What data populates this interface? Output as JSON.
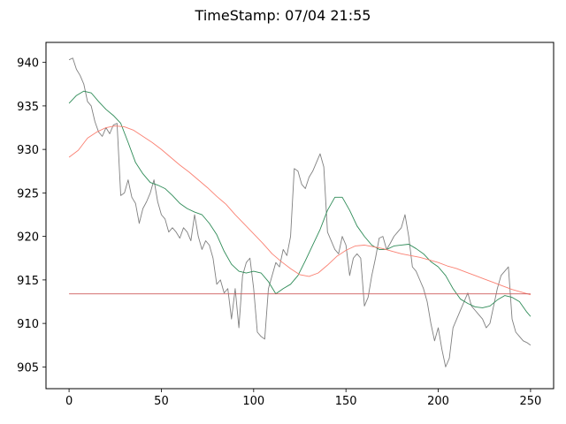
{
  "chart_data": {
    "type": "line",
    "title": "TimeStamp: 07/04 21:55",
    "xlabel": "",
    "ylabel": "",
    "xlim": [
      -12.5,
      262.5
    ],
    "ylim": [
      902.5,
      942.3
    ],
    "xticks": [
      0,
      50,
      100,
      150,
      200,
      250
    ],
    "yticks": [
      905,
      910,
      915,
      920,
      925,
      930,
      935,
      940
    ],
    "grid": false,
    "legend": "none",
    "series": [
      {
        "color": "#808080",
        "x": [
          0,
          2,
          4,
          6,
          8,
          10,
          12,
          14,
          16,
          18,
          20,
          22,
          24,
          26,
          28,
          30,
          32,
          34,
          36,
          38,
          40,
          42,
          44,
          46,
          48,
          50,
          52,
          54,
          56,
          58,
          60,
          62,
          64,
          66,
          68,
          70,
          72,
          74,
          76,
          78,
          80,
          82,
          84,
          86,
          88,
          90,
          92,
          94,
          96,
          98,
          100,
          102,
          104,
          106,
          108,
          110,
          112,
          114,
          116,
          118,
          120,
          122,
          124,
          126,
          128,
          130,
          132,
          134,
          136,
          138,
          140,
          142,
          144,
          146,
          148,
          150,
          152,
          154,
          156,
          158,
          160,
          162,
          164,
          166,
          168,
          170,
          172,
          174,
          176,
          178,
          180,
          182,
          184,
          186,
          188,
          190,
          192,
          194,
          196,
          198,
          200,
          202,
          204,
          206,
          208,
          210,
          212,
          214,
          216,
          218,
          220,
          222,
          224,
          226,
          228,
          230,
          232,
          234,
          236,
          238,
          240,
          242,
          244,
          246,
          248,
          250
        ],
        "values": [
          940.3,
          940.5,
          939.2,
          938.5,
          937.5,
          935.5,
          935.0,
          933.2,
          932.0,
          931.5,
          932.5,
          931.8,
          932.8,
          933.0,
          924.7,
          925.0,
          926.5,
          924.5,
          923.8,
          921.5,
          923.2,
          924.0,
          925.0,
          926.5,
          924.0,
          922.5,
          922.0,
          920.5,
          921.0,
          920.5,
          919.8,
          921.0,
          920.5,
          919.5,
          922.5,
          920.0,
          918.5,
          919.5,
          919.0,
          917.5,
          914.5,
          915.0,
          913.5,
          914.0,
          910.5,
          914.0,
          909.5,
          915.5,
          917.0,
          917.5,
          914.0,
          909.0,
          908.5,
          908.2,
          914.0,
          915.5,
          917.0,
          916.5,
          918.5,
          917.8,
          920.0,
          927.8,
          927.5,
          926.0,
          925.5,
          926.8,
          927.5,
          928.5,
          929.5,
          928.0,
          920.5,
          919.5,
          918.5,
          918.0,
          920.0,
          919.0,
          915.5,
          917.5,
          918.0,
          917.5,
          912.0,
          913.0,
          915.5,
          917.5,
          919.8,
          920.0,
          918.5,
          919.2,
          920.0,
          920.5,
          921.0,
          922.5,
          920.0,
          916.5,
          916.0,
          915.0,
          914.0,
          912.5,
          910.0,
          908.0,
          909.5,
          907.0,
          905.0,
          906.0,
          909.5,
          910.5,
          911.5,
          912.5,
          913.5,
          912.0,
          911.5,
          911.0,
          910.5,
          909.5,
          910.0,
          912.0,
          914.0,
          915.5,
          916.0,
          916.5,
          910.5,
          909.0,
          908.5,
          908.0,
          907.8,
          907.5
        ]
      },
      {
        "color": "#2e8b57",
        "x": [
          0,
          4,
          8,
          12,
          16,
          20,
          24,
          28,
          32,
          36,
          40,
          44,
          48,
          52,
          56,
          60,
          64,
          68,
          72,
          76,
          80,
          84,
          88,
          92,
          96,
          100,
          104,
          108,
          112,
          116,
          120,
          124,
          128,
          132,
          136,
          140,
          144,
          148,
          152,
          156,
          160,
          164,
          168,
          172,
          176,
          180,
          184,
          188,
          192,
          196,
          200,
          204,
          208,
          212,
          216,
          220,
          224,
          228,
          232,
          236,
          240,
          244,
          248,
          250
        ],
        "values": [
          935.3,
          936.2,
          936.7,
          936.5,
          935.5,
          934.6,
          933.9,
          933.0,
          930.8,
          928.5,
          927.2,
          926.2,
          925.9,
          925.5,
          924.7,
          923.8,
          923.2,
          922.8,
          922.5,
          921.5,
          920.2,
          918.3,
          916.8,
          916.0,
          915.8,
          916.0,
          915.8,
          914.8,
          913.4,
          914.0,
          914.5,
          915.5,
          917.2,
          919.0,
          920.8,
          923.0,
          924.5,
          924.5,
          923.0,
          921.2,
          920.0,
          919.0,
          918.5,
          918.5,
          918.9,
          919.0,
          919.1,
          918.6,
          918.0,
          917.1,
          916.5,
          915.5,
          914.0,
          912.8,
          912.3,
          911.9,
          911.8,
          912.0,
          912.7,
          913.2,
          913.0,
          912.5,
          911.3,
          910.8
        ]
      },
      {
        "color": "#fa8072",
        "x": [
          0,
          5,
          10,
          15,
          20,
          25,
          30,
          35,
          40,
          45,
          50,
          55,
          60,
          65,
          70,
          75,
          80,
          85,
          90,
          95,
          100,
          105,
          110,
          115,
          120,
          125,
          130,
          135,
          140,
          145,
          150,
          155,
          160,
          165,
          170,
          175,
          180,
          185,
          190,
          195,
          200,
          205,
          210,
          215,
          220,
          225,
          230,
          235,
          240,
          245,
          250
        ],
        "values": [
          929.1,
          929.9,
          931.3,
          932.0,
          932.5,
          932.7,
          932.6,
          932.2,
          931.5,
          930.8,
          930.0,
          929.1,
          928.2,
          927.4,
          926.5,
          925.6,
          924.6,
          923.7,
          922.5,
          921.4,
          920.3,
          919.2,
          918.0,
          917.1,
          916.3,
          915.6,
          915.4,
          915.8,
          916.7,
          917.7,
          918.4,
          918.9,
          919.0,
          918.8,
          918.6,
          918.3,
          918.0,
          917.8,
          917.6,
          917.3,
          917.0,
          916.6,
          916.3,
          915.9,
          915.5,
          915.1,
          914.7,
          914.3,
          913.9,
          913.6,
          913.3
        ]
      },
      {
        "color": "#cd5c5c",
        "x": [
          0,
          250
        ],
        "values": [
          913.4,
          913.4
        ]
      }
    ]
  }
}
